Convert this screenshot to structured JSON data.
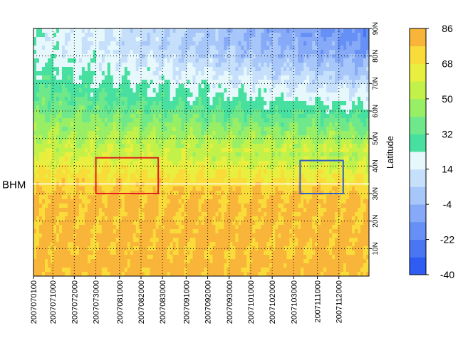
{
  "chart_data": {
    "type": "heatmap",
    "x_axis": {
      "ticks": [
        "20070701",
        "20070710",
        "20070720",
        "20070730",
        "20070810",
        "20070820",
        "20070830",
        "20070910",
        "20070920",
        "20070930",
        "20071010",
        "20071020",
        "20071030",
        "20071110",
        "20071120"
      ],
      "tick_labels": [
        "2007070100",
        "2007071000",
        "2007072000",
        "2007073000",
        "2007081000",
        "2007082000",
        "2007083000",
        "2007091000",
        "2007092000",
        "2007093000",
        "2007101000",
        "2007102000",
        "2007103000",
        "2007111000",
        "2007112000"
      ],
      "range": [
        "2007070100",
        "2007120400"
      ]
    },
    "y_axis": {
      "label": "Latitude",
      "tick_values": [
        10,
        20,
        30,
        40,
        50,
        60,
        70,
        80,
        90
      ],
      "tick_labels": [
        "10N",
        "20N",
        "30N",
        "40N",
        "50N",
        "60N",
        "70N",
        "80N",
        "90N"
      ],
      "range": [
        0,
        90
      ],
      "position": "right"
    },
    "grid": true,
    "colorbar": {
      "levels": [
        -40,
        -31,
        -22,
        -13,
        -4,
        5,
        14,
        23,
        32,
        41,
        50,
        59,
        68,
        77,
        86
      ],
      "labels": [
        "86",
        "68",
        "50",
        "32",
        "14",
        "-4",
        "-22",
        "-40"
      ],
      "colors": [
        "#2f5cf2",
        "#4a76f4",
        "#6690f5",
        "#86aaf7",
        "#a7c6f9",
        "#c6e0fb",
        "#e6f8fb",
        "#48e0a0",
        "#6ee88a",
        "#98ef66",
        "#c2f24a",
        "#e8ef3e",
        "#f9dc3a",
        "#f9b43a"
      ],
      "position": "right"
    },
    "field_description_by_latitude": [
      {
        "lat": [
          0,
          30
        ],
        "value": 80
      },
      {
        "lat": [
          30,
          40
        ],
        "value": 74
      },
      {
        "lat": [
          40,
          50
        ],
        "value": 62
      },
      {
        "lat": [
          50,
          60
        ],
        "value": 50
      },
      {
        "lat": [
          60,
          70
        ],
        "value": 38
      },
      {
        "lat": [
          70,
          90
        ],
        "value": 20
      }
    ],
    "annotations": [
      {
        "type": "hline",
        "label": "BHM",
        "lat": 33.5,
        "color": "#ffffff"
      },
      {
        "type": "box",
        "color": "#e02020",
        "x": [
          "2007073000",
          "2007082800"
        ],
        "lat": [
          30,
          43
        ]
      },
      {
        "type": "box",
        "color": "#3060c0",
        "x": [
          "2007110200",
          "2007112200"
        ],
        "lat": [
          30,
          42
        ]
      }
    ]
  }
}
